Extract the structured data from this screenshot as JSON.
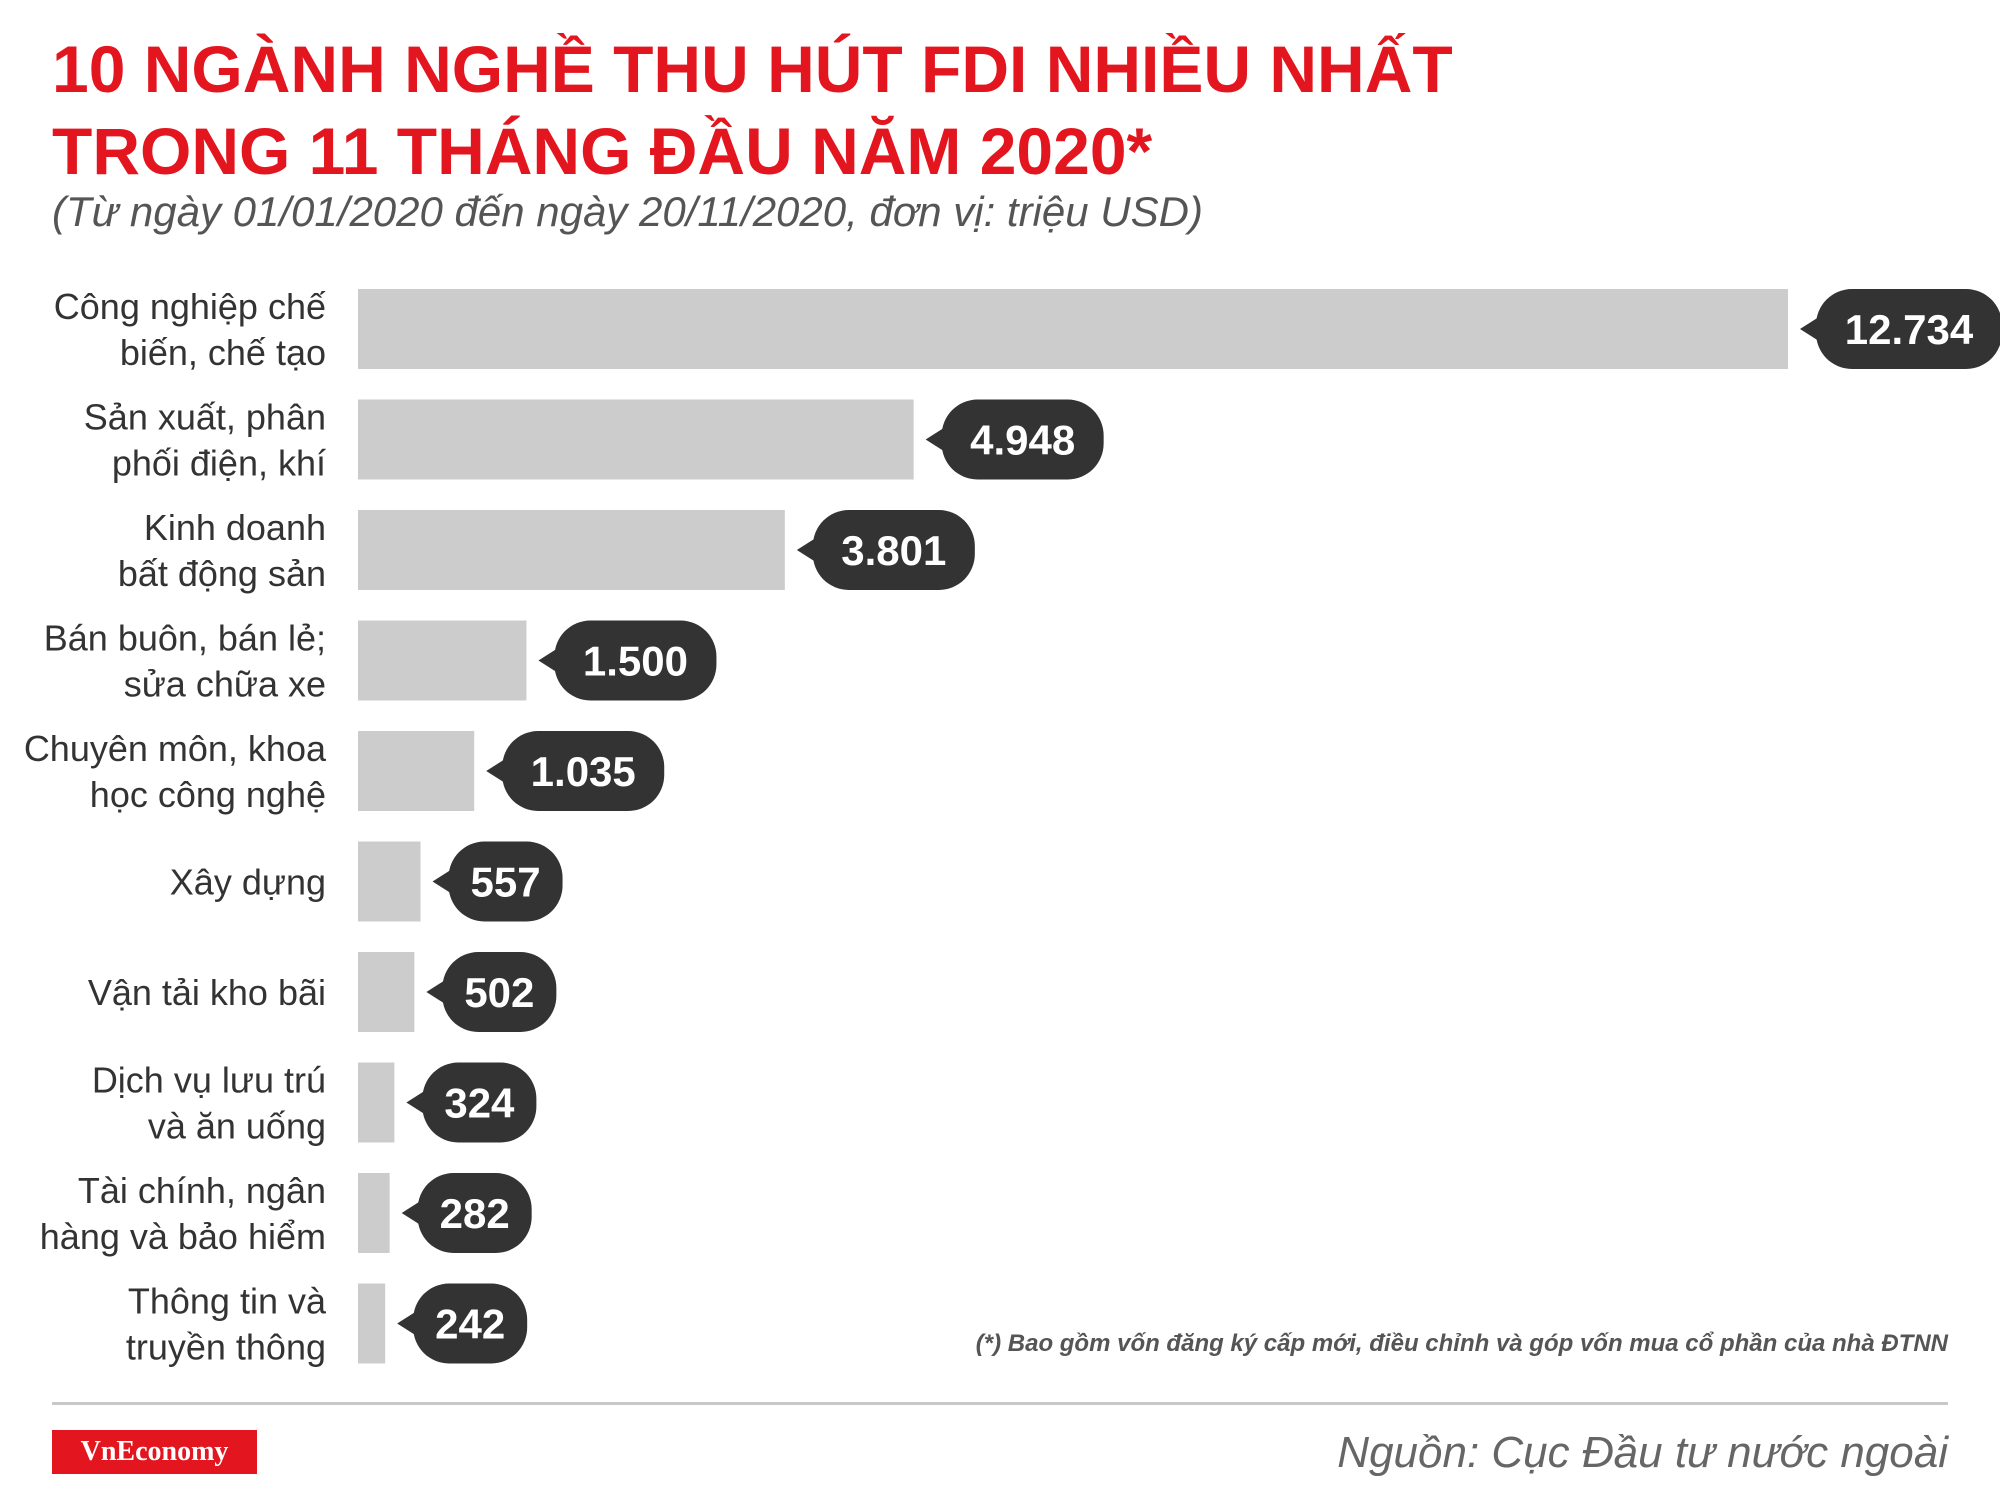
{
  "title_lines": [
    "10 NGÀNH NGHỀ THU HÚT FDI NHIỀU NHẤT",
    "TRONG 11 THÁNG ĐẦU NĂM 2020*"
  ],
  "subtitle": "(Từ ngày 01/01/2020 đến ngày 20/11/2020, đơn vị: triệu USD)",
  "footnote": "(*) Bao gồm vốn đăng ký cấp mới, điều chỉnh và góp vốn mua cổ phần của nhà ĐTNN",
  "source": "Nguồn: Cục Đầu tư nước ngoài",
  "logo_text": "VnEconomy",
  "colors": {
    "title": "#e3161f",
    "bar": "#cccccc",
    "value_badge": "#333333",
    "logo_bg": "#e3161f"
  },
  "chart_data": {
    "type": "bar",
    "orientation": "horizontal",
    "categories": [
      [
        "Công nghiệp chế",
        "biến, chế tạo"
      ],
      [
        "Sản xuất, phân",
        "phối điện, khí"
      ],
      [
        "Kinh doanh",
        "bất động sản"
      ],
      [
        "Bán buôn, bán lẻ;",
        "sửa chữa xe"
      ],
      [
        "Chuyên môn, khoa",
        "học công nghệ"
      ],
      [
        "Xây dựng"
      ],
      [
        "Vận tải kho bãi"
      ],
      [
        "Dịch vụ lưu trú",
        "và ăn uống"
      ],
      [
        "Tài chính, ngân",
        "hàng và bảo hiểm"
      ],
      [
        "Thông tin và",
        "truyền thông"
      ]
    ],
    "values": [
      12734,
      4948,
      3801,
      1500,
      1035,
      557,
      502,
      324,
      282,
      242
    ],
    "value_labels": [
      "12.734",
      "4.948",
      "3.801",
      "1.500",
      "1.035",
      "557",
      "502",
      "324",
      "282",
      "242"
    ],
    "xlim": [
      0,
      12734
    ],
    "grid": false,
    "legend": "none"
  }
}
